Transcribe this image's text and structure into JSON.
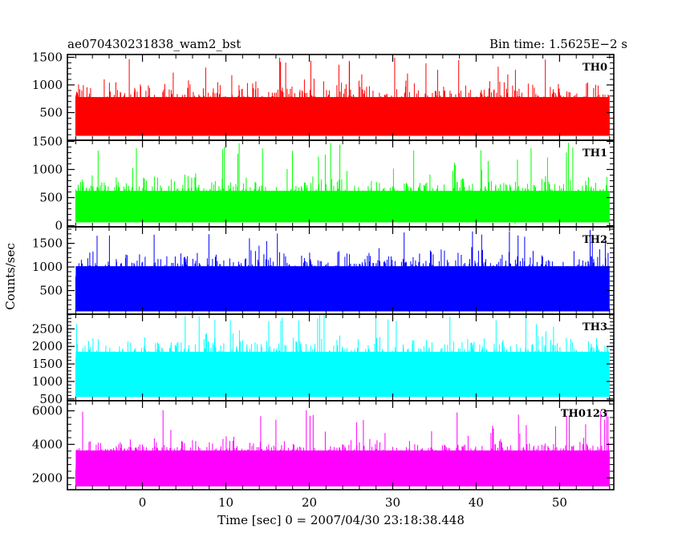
{
  "header": {
    "title": "ae070430231838_wam2_bst",
    "bin_time": "Bin time: 1.5625E−2 s"
  },
  "chart_data": {
    "type": "line",
    "xlabel": "Time [sec] 0 = 2007/04/30 23:18:38.448",
    "ylabel": "Counts/sec",
    "xlim": [
      -9,
      56.5
    ],
    "xticks": [
      0,
      10,
      20,
      30,
      40,
      50
    ],
    "data_time_range": [
      -8,
      56
    ],
    "grid": false,
    "panels": [
      {
        "name": "TH0",
        "color": "#ff0000",
        "ylim": [
          0,
          1550
        ],
        "yticks": [
          500,
          1000,
          1500
        ],
        "baseline": 80,
        "mean": 620,
        "spread": 230,
        "max_spike": 1510
      },
      {
        "name": "TH1",
        "color": "#00ff00",
        "ylim": [
          -20,
          1520
        ],
        "yticks": [
          0,
          500,
          1000,
          1500
        ],
        "baseline": 60,
        "mean": 480,
        "spread": 200,
        "max_spike": 1480
      },
      {
        "name": "TH2",
        "color": "#0000ff",
        "ylim": [
          0,
          1850
        ],
        "yticks": [
          500,
          1000,
          1500
        ],
        "baseline": 60,
        "mean": 820,
        "spread": 280,
        "max_spike": 1800
      },
      {
        "name": "TH3",
        "color": "#00ffff",
        "ylim": [
          450,
          2920
        ],
        "yticks": [
          500,
          1000,
          1500,
          2000,
          2500
        ],
        "baseline": 560,
        "mean": 1580,
        "spread": 380,
        "max_spike": 2900
      },
      {
        "name": "TH0123",
        "color": "#ff00ff",
        "ylim": [
          1300,
          6600
        ],
        "yticks": [
          2000,
          4000,
          6000
        ],
        "baseline": 1500,
        "mean": 3300,
        "spread": 480,
        "max_spike": 6050
      }
    ]
  }
}
